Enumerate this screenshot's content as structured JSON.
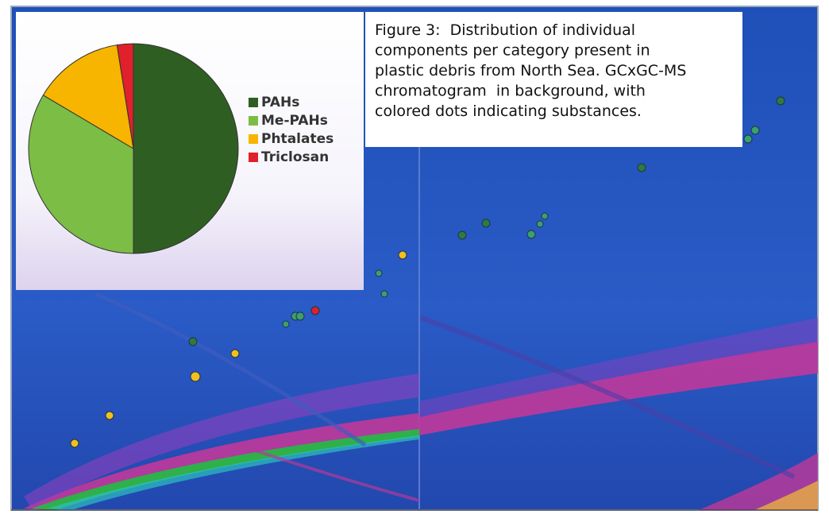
{
  "chart_data": {
    "type": "pie",
    "caption_lines": [
      "Figure 3:  Distribution of individual",
      "components per category present in",
      "plastic debris from North Sea. GCxGC-MS",
      "chromatogram  in background, with",
      "colored dots indicating substances."
    ],
    "categories": [
      "PAHs",
      "Me-PAHs",
      "Phtalates",
      "Triclosan"
    ],
    "values": [
      50,
      33.5,
      14,
      2.5
    ],
    "colors": [
      "#2f5e22",
      "#7bbd45",
      "#f7b500",
      "#e0202a"
    ]
  }
}
